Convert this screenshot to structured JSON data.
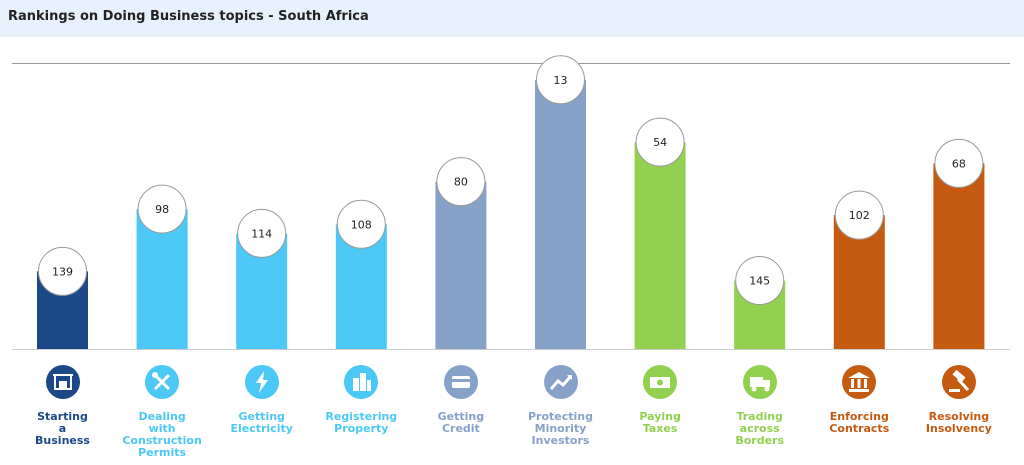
{
  "header": {
    "title": "Rankings on Doing Business topics - South Africa"
  },
  "chart_data": {
    "type": "bar",
    "title": "Rankings on Doing Business topics - South Africa",
    "ylim": [
      0,
      190
    ],
    "ranks_inverted": true,
    "categories": [
      "Starting a Business",
      "Dealing with Construction Permits",
      "Getting Electricity",
      "Registering Property",
      "Getting Credit",
      "Protecting Minority Investors",
      "Paying Taxes",
      "Trading across Borders",
      "Enforcing Contracts",
      "Resolving Insolvency"
    ],
    "label_lines": [
      [
        "Starting",
        "a",
        "Business"
      ],
      [
        "Dealing",
        "with",
        "Construction",
        "Permits"
      ],
      [
        "Getting",
        "Electricity"
      ],
      [
        "Registering",
        "Property"
      ],
      [
        "Getting",
        "Credit"
      ],
      [
        "Protecting",
        "Minority",
        "Investors"
      ],
      [
        "Paying",
        "Taxes"
      ],
      [
        "Trading",
        "across",
        "Borders"
      ],
      [
        "Enforcing",
        "Contracts"
      ],
      [
        "Resolving",
        "Insolvency"
      ]
    ],
    "values": [
      139,
      98,
      114,
      108,
      80,
      13,
      54,
      145,
      102,
      68
    ],
    "colors": [
      "#1b4987",
      "#4bc8f5",
      "#4bc8f5",
      "#4bc8f5",
      "#87a2c9",
      "#87a2c9",
      "#92d050",
      "#92d050",
      "#c55a11",
      "#c55a11"
    ],
    "icons": [
      "building-icon",
      "tools-icon",
      "lightning-icon",
      "buildings-icon",
      "credit-card-icon",
      "trend-up-icon",
      "money-icon",
      "truck-icon",
      "courthouse-icon",
      "gavel-icon"
    ],
    "legend": "none",
    "grid": false
  }
}
